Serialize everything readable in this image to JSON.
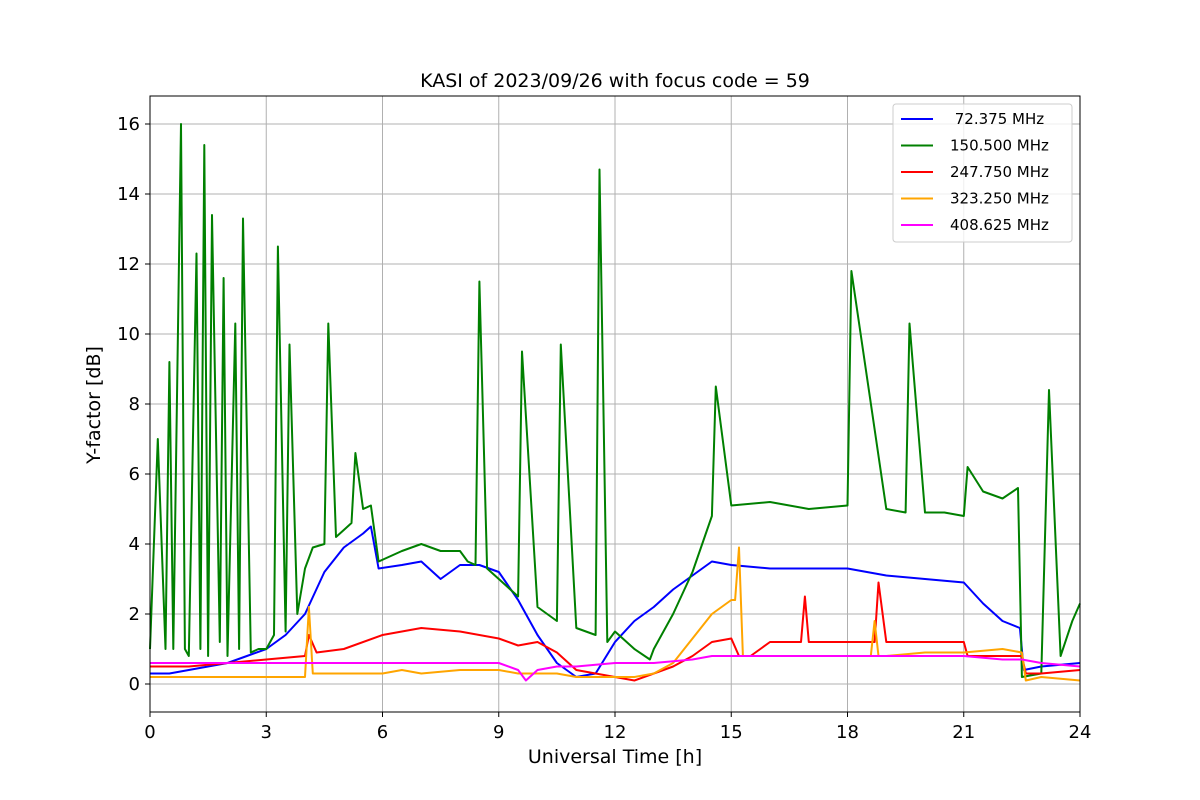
{
  "chart_data": {
    "type": "line",
    "title": "KASI of 2023/09/26 with focus code = 59",
    "xlabel": "Universal Time [h]",
    "ylabel": "Y-factor [dB]",
    "xlim": [
      0,
      24
    ],
    "ylim": [
      -0.8,
      16.8
    ],
    "xticks": [
      0,
      3,
      6,
      9,
      12,
      15,
      18,
      21,
      24
    ],
    "yticks": [
      0,
      2,
      4,
      6,
      8,
      10,
      12,
      14,
      16
    ],
    "grid": true,
    "legend_position": "top-right",
    "series": [
      {
        "name": " 72.375 MHz",
        "color": "#0000ff",
        "x": [
          0,
          0.5,
          1,
          1.5,
          2,
          2.5,
          3,
          3.5,
          4,
          4.5,
          5,
          5.5,
          5.7,
          5.9,
          6.5,
          7,
          7.5,
          8,
          8.5,
          9,
          9.5,
          10,
          10.5,
          11,
          11.5,
          12,
          12.5,
          13,
          13.5,
          14,
          14.5,
          15,
          16,
          17,
          18,
          19,
          20,
          21,
          21.5,
          22,
          22.45,
          22.55,
          23,
          24
        ],
        "y": [
          0.3,
          0.3,
          0.4,
          0.5,
          0.6,
          0.8,
          1.0,
          1.4,
          2.0,
          3.2,
          3.9,
          4.3,
          4.5,
          3.3,
          3.4,
          3.5,
          3.0,
          3.4,
          3.4,
          3.2,
          2.4,
          1.4,
          0.6,
          0.2,
          0.3,
          1.2,
          1.8,
          2.2,
          2.7,
          3.1,
          3.5,
          3.4,
          3.3,
          3.3,
          3.3,
          3.1,
          3.0,
          2.9,
          2.3,
          1.8,
          1.6,
          0.4,
          0.5,
          0.6
        ]
      },
      {
        "name": "150.500 MHz",
        "color": "#008000",
        "x": [
          0,
          0.2,
          0.4,
          0.5,
          0.6,
          0.8,
          0.9,
          1.0,
          1.2,
          1.3,
          1.4,
          1.5,
          1.6,
          1.8,
          1.9,
          2.0,
          2.2,
          2.3,
          2.4,
          2.6,
          2.8,
          3.0,
          3.2,
          3.3,
          3.5,
          3.6,
          3.8,
          4.0,
          4.2,
          4.5,
          4.6,
          4.8,
          5.0,
          5.2,
          5.3,
          5.5,
          5.7,
          5.9,
          6.5,
          7.0,
          7.5,
          8.0,
          8.2,
          8.4,
          8.5,
          8.7,
          9.0,
          9.5,
          9.6,
          10.0,
          10.5,
          10.6,
          11.0,
          11.5,
          11.6,
          11.8,
          12.0,
          12.5,
          12.9,
          13.0,
          13.5,
          14.0,
          14.5,
          14.6,
          15.0,
          16.0,
          17.0,
          18.0,
          18.1,
          19.0,
          19.5,
          19.6,
          20.0,
          20.5,
          21.0,
          21.1,
          21.5,
          22.0,
          22.4,
          22.5,
          23.0,
          23.2,
          23.5,
          23.8,
          24
        ],
        "y": [
          1.0,
          7.0,
          1.0,
          9.2,
          1.0,
          16.0,
          1.0,
          0.8,
          12.3,
          1.0,
          15.4,
          0.8,
          13.4,
          1.2,
          11.6,
          0.8,
          10.3,
          1.0,
          13.3,
          0.9,
          1.0,
          1.0,
          1.4,
          12.5,
          1.5,
          9.7,
          2.0,
          3.3,
          3.9,
          4.0,
          10.3,
          4.2,
          4.4,
          4.6,
          6.6,
          5.0,
          5.1,
          3.5,
          3.8,
          4.0,
          3.8,
          3.8,
          3.5,
          3.4,
          11.5,
          3.3,
          3.0,
          2.5,
          9.5,
          2.2,
          1.8,
          9.7,
          1.6,
          1.4,
          14.7,
          1.2,
          1.5,
          1.0,
          0.7,
          1.0,
          2.0,
          3.2,
          4.8,
          8.5,
          5.1,
          5.2,
          5.0,
          5.1,
          11.8,
          5.0,
          4.9,
          10.3,
          4.9,
          4.9,
          4.8,
          6.2,
          5.5,
          5.3,
          5.6,
          0.2,
          0.3,
          8.4,
          0.8,
          1.8,
          2.3
        ]
      },
      {
        "name": "247.750 MHz",
        "color": "#ff0000",
        "x": [
          0,
          1,
          2,
          3,
          4,
          4.1,
          4.3,
          5,
          6,
          7,
          8,
          9,
          9.5,
          10,
          10.5,
          11,
          11.5,
          12,
          12.5,
          13,
          13.5,
          14,
          14.5,
          15,
          15.2,
          15.5,
          16,
          16.8,
          16.9,
          17,
          18,
          18.7,
          18.8,
          19,
          20,
          21,
          21.1,
          22,
          22.5,
          22.6,
          23,
          24
        ],
        "y": [
          0.5,
          0.5,
          0.6,
          0.7,
          0.8,
          1.4,
          0.9,
          1.0,
          1.4,
          1.6,
          1.5,
          1.3,
          1.1,
          1.2,
          0.9,
          0.4,
          0.3,
          0.2,
          0.1,
          0.3,
          0.5,
          0.8,
          1.2,
          1.3,
          0.8,
          0.8,
          1.2,
          1.2,
          2.5,
          1.2,
          1.2,
          1.2,
          2.9,
          1.2,
          1.2,
          1.2,
          0.8,
          0.8,
          0.8,
          0.3,
          0.3,
          0.4
        ]
      },
      {
        "name": "323.250 MHz",
        "color": "#ffa500",
        "x": [
          0,
          1,
          2,
          3,
          4,
          4.1,
          4.2,
          4.3,
          5,
          6,
          6.5,
          7,
          8,
          9,
          9.5,
          10,
          10.5,
          11,
          11.5,
          12,
          12.5,
          13,
          13.5,
          14,
          14.5,
          15.0,
          15.1,
          15.2,
          15.3,
          16,
          17,
          18,
          18.6,
          18.7,
          18.8,
          19,
          20,
          21,
          22,
          22.5,
          22.6,
          23,
          24
        ],
        "y": [
          0.2,
          0.2,
          0.2,
          0.2,
          0.2,
          2.2,
          0.3,
          0.3,
          0.3,
          0.3,
          0.4,
          0.3,
          0.4,
          0.4,
          0.3,
          0.3,
          0.3,
          0.2,
          0.2,
          0.2,
          0.2,
          0.3,
          0.6,
          1.3,
          2.0,
          2.4,
          2.4,
          3.9,
          0.8,
          0.8,
          0.8,
          0.8,
          0.8,
          1.8,
          0.8,
          0.8,
          0.9,
          0.9,
          1.0,
          0.9,
          0.1,
          0.2,
          0.1
        ]
      },
      {
        "name": "408.625 MHz",
        "color": "#ff00ff",
        "x": [
          0,
          1,
          2,
          3,
          4,
          5,
          6,
          7,
          8,
          9,
          9.5,
          9.7,
          10,
          10.5,
          11,
          12,
          13,
          14,
          14.5,
          15,
          16,
          17,
          18,
          19,
          20,
          21,
          22,
          22.5,
          23,
          24
        ],
        "y": [
          0.6,
          0.6,
          0.6,
          0.6,
          0.6,
          0.6,
          0.6,
          0.6,
          0.6,
          0.6,
          0.4,
          0.1,
          0.4,
          0.5,
          0.5,
          0.6,
          0.6,
          0.7,
          0.8,
          0.8,
          0.8,
          0.8,
          0.8,
          0.8,
          0.8,
          0.8,
          0.7,
          0.7,
          0.6,
          0.5
        ]
      }
    ]
  }
}
